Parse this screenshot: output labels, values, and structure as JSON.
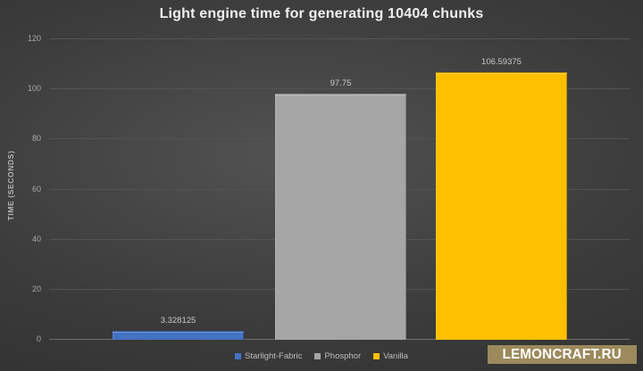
{
  "chart_data": {
    "type": "bar",
    "title": "Light engine time for generating 10404 chunks",
    "categories": [
      "Starlight-Fabric",
      "Phosphor",
      "Vanilla"
    ],
    "values": [
      3.328125,
      97.75,
      106.59375
    ],
    "value_labels": [
      "3.328125",
      "97.75",
      "106.59375"
    ],
    "colors": [
      "#4472c4",
      "#a6a6a6",
      "#ffc000"
    ],
    "edge_colors": [
      "#2f5597",
      "#8c8c8c",
      "#bf9000"
    ],
    "xlabel": "",
    "ylabel": "TIME (SECONDS)",
    "ylim": [
      0,
      120
    ],
    "yticks": [
      0,
      20,
      40,
      60,
      80,
      100,
      120
    ],
    "grid": true,
    "legend_position": "bottom",
    "legend_entries": [
      "Starlight-Fabric",
      "Phosphor",
      "Vanilla"
    ]
  },
  "watermark": {
    "text": "LEMONCRAFT.RU",
    "background_color": "#9c8a5c",
    "text_color": "#ffffff"
  },
  "theme": {
    "background_dark": "#262626",
    "background_light": "#525252",
    "gridline_color": "#535353",
    "title_color": "#efefef",
    "tick_label_color": "#a8a8a8"
  }
}
